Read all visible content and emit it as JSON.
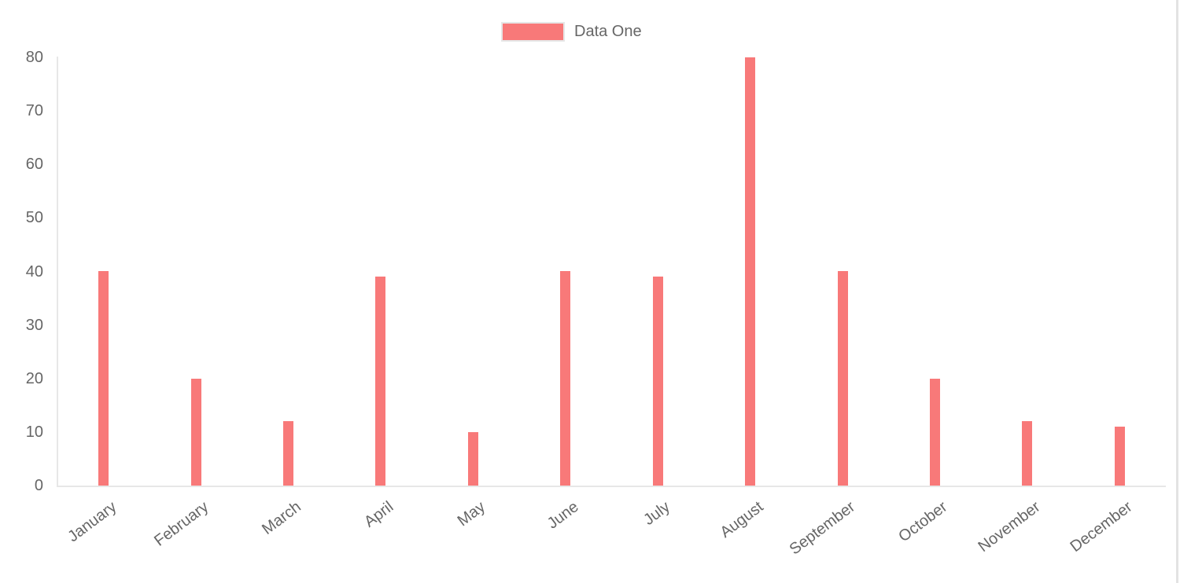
{
  "chart_data": {
    "type": "bar",
    "title": "",
    "xlabel": "",
    "ylabel": "",
    "categories": [
      "January",
      "February",
      "March",
      "April",
      "May",
      "June",
      "July",
      "August",
      "September",
      "October",
      "November",
      "December"
    ],
    "series": [
      {
        "name": "Data One",
        "values": [
          40,
          20,
          12,
          39,
          10,
          40,
          39,
          80,
          40,
          20,
          12,
          11
        ],
        "color": "#f87979"
      }
    ],
    "ylim": [
      0,
      80
    ],
    "y_ticks": [
      80,
      70,
      60,
      50,
      40,
      30,
      20,
      10,
      0
    ],
    "grid": false,
    "legend_position": "top",
    "axis_line_color": "#e7e7e7",
    "tick_label_color": "#666666",
    "legend_swatch_border_color": "#e6e6e6"
  }
}
